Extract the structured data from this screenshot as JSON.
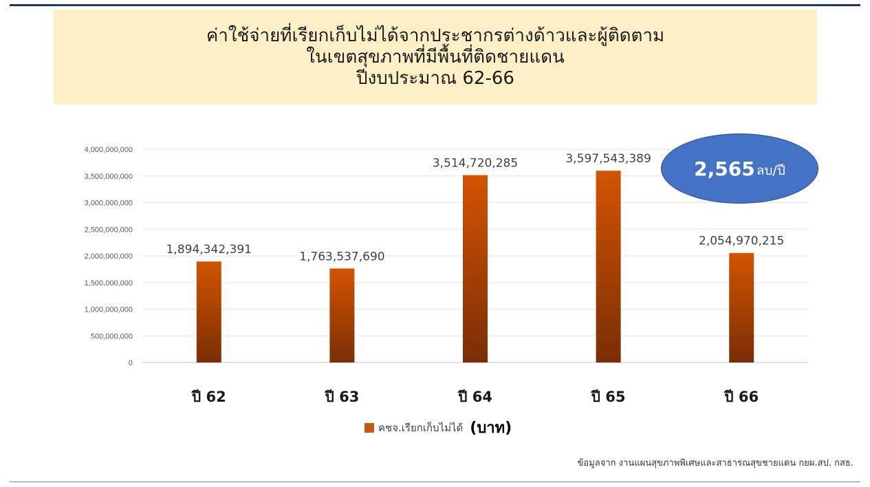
{
  "title": {
    "line1": "ค่าใช้จ่ายที่เรียกเก็บไม่ได้จากประชากรต่างด้าวและผู้ติดตาม",
    "line2": "ในเขตสุขภาพที่มีพื้นที่ติดชายแดน",
    "line3": "ปีงบประมาณ 62-66"
  },
  "callout": {
    "value": "2,565",
    "unit": "ลบ/ปี"
  },
  "legend": {
    "series_label": "คชจ.เรียกเก็บไม่ได้",
    "unit_label": "(บาท)"
  },
  "source": "ข้อมูลจาก งานแผนสุขภาพพิเศษและสาธารณสุขชายแดน กยผ.สป. กสธ.",
  "colors": {
    "bar_top": "#d35400",
    "bar_bottom": "#7a2e06",
    "title_bg": "#fdefc6",
    "callout_bg": "#4472c4",
    "rule": "#1f3864"
  },
  "chart_data": {
    "type": "bar",
    "categories": [
      "ปี 62",
      "ปี 63",
      "ปี 64",
      "ปี 65",
      "ปี 66"
    ],
    "values": [
      1894342391,
      1763537690,
      3514720285,
      3597543389,
      2054970215
    ],
    "value_labels": [
      "1,894,342,391",
      "1,763,537,690",
      "3,514,720,285",
      "3,597,543,389",
      "2,054,970,215"
    ],
    "y_ticks": [
      "0",
      "500,000,000",
      "1,000,000,000",
      "1,500,000,000",
      "2,000,000,000",
      "2,500,000,000",
      "3,000,000,000",
      "3,500,000,000",
      "4,000,000,000"
    ],
    "ylim": [
      0,
      4000000000
    ],
    "grid": true,
    "legend_position": "bottom"
  }
}
